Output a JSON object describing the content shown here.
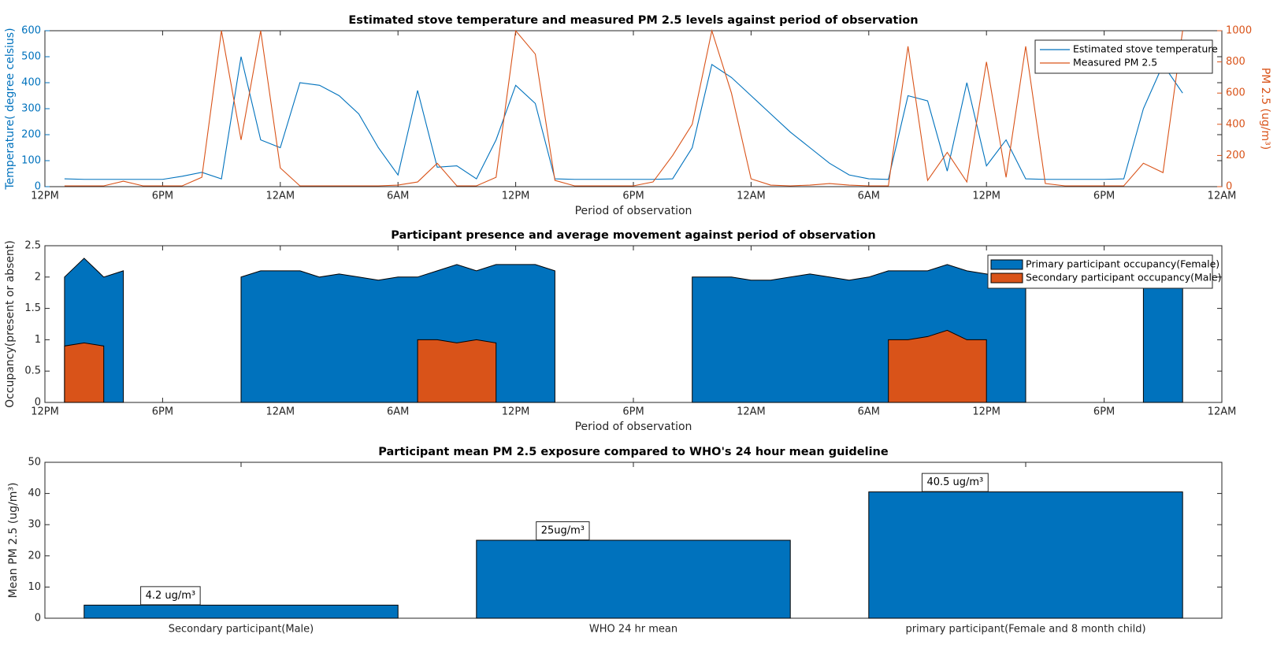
{
  "chart_data": [
    {
      "type": "line",
      "title": "Estimated stove temperature and measured PM 2.5 levels against period of observation",
      "xlabel": "Period of observation",
      "ylabel": "Temperature( degree celsius)",
      "y2label": "PM 2.5 (ug/m³)",
      "x": [
        0,
        1,
        2,
        3,
        4,
        5,
        6,
        7,
        8,
        9,
        10,
        11,
        12,
        13,
        14,
        15,
        16,
        17,
        18,
        19,
        20,
        21,
        22,
        23,
        24,
        25,
        26,
        27,
        28,
        29,
        30,
        31,
        32,
        33,
        34,
        35,
        36,
        37,
        38,
        39,
        40,
        41,
        42,
        43,
        44,
        45,
        46,
        47,
        48,
        49,
        50,
        51,
        52,
        53,
        54,
        55,
        56,
        57,
        58,
        59,
        60
      ],
      "xlim": [
        0,
        60
      ],
      "xticks": [
        {
          "value": 0,
          "label": "12PM"
        },
        {
          "value": 6,
          "label": "6PM"
        },
        {
          "value": 12,
          "label": "12AM"
        },
        {
          "value": 18,
          "label": "6AM"
        },
        {
          "value": 24,
          "label": "12PM"
        },
        {
          "value": 30,
          "label": "6PM"
        },
        {
          "value": 36,
          "label": "12AM"
        },
        {
          "value": 42,
          "label": "6AM"
        },
        {
          "value": 48,
          "label": "12PM"
        },
        {
          "value": 54,
          "label": "6PM"
        },
        {
          "value": 60,
          "label": "12AM"
        }
      ],
      "ylim": [
        0,
        600
      ],
      "yticks": [
        0,
        100,
        200,
        300,
        400,
        500,
        600
      ],
      "y2lim": [
        0,
        1000
      ],
      "y2ticks": [
        0,
        200,
        400,
        600,
        800,
        1000
      ],
      "legend": "upper right",
      "series": [
        {
          "name": "Estimated stove temperature",
          "color": "#0072bd",
          "axis": "y",
          "values": [
            null,
            30,
            28,
            28,
            28,
            28,
            28,
            40,
            55,
            30,
            500,
            180,
            150,
            400,
            390,
            350,
            280,
            150,
            45,
            370,
            75,
            80,
            30,
            180,
            390,
            320,
            30,
            28,
            28,
            28,
            28,
            28,
            30,
            150,
            470,
            420,
            350,
            280,
            210,
            150,
            90,
            45,
            30,
            28,
            350,
            330,
            60,
            400,
            80,
            180,
            30,
            28,
            28,
            28,
            28,
            30,
            300,
            470,
            360,
            null,
            null
          ]
        },
        {
          "name": "Measured PM 2.5",
          "color": "#d95319",
          "axis": "y2",
          "values": [
            null,
            5,
            5,
            5,
            35,
            5,
            5,
            5,
            60,
            1000,
            300,
            1000,
            120,
            5,
            5,
            5,
            5,
            5,
            10,
            30,
            150,
            5,
            5,
            60,
            1000,
            850,
            40,
            5,
            5,
            5,
            5,
            30,
            200,
            400,
            1000,
            600,
            50,
            10,
            5,
            10,
            20,
            10,
            5,
            5,
            900,
            40,
            220,
            30,
            800,
            60,
            900,
            20,
            5,
            5,
            5,
            5,
            150,
            90,
            1000,
            null,
            null
          ]
        }
      ]
    },
    {
      "type": "area",
      "title": "Participant presence and average movement against period of observation",
      "xlabel": "Period of observation",
      "ylabel": "Occupancy(present or absent)",
      "x": [
        0,
        1,
        2,
        3,
        4,
        5,
        6,
        7,
        8,
        9,
        10,
        11,
        12,
        13,
        14,
        15,
        16,
        17,
        18,
        19,
        20,
        21,
        22,
        23,
        24,
        25,
        26,
        27,
        28,
        29,
        30,
        31,
        32,
        33,
        34,
        35,
        36,
        37,
        38,
        39,
        40,
        41,
        42,
        43,
        44,
        45,
        46,
        47,
        48,
        49,
        50,
        51,
        52,
        53,
        54,
        55,
        56,
        57,
        58,
        59,
        60
      ],
      "xlim": [
        0,
        60
      ],
      "xticks": [
        {
          "value": 0,
          "label": "12PM"
        },
        {
          "value": 6,
          "label": "6PM"
        },
        {
          "value": 12,
          "label": "12AM"
        },
        {
          "value": 18,
          "label": "6AM"
        },
        {
          "value": 24,
          "label": "12PM"
        },
        {
          "value": 30,
          "label": "6PM"
        },
        {
          "value": 36,
          "label": "12AM"
        },
        {
          "value": 42,
          "label": "6AM"
        },
        {
          "value": 48,
          "label": "12PM"
        },
        {
          "value": 54,
          "label": "6PM"
        },
        {
          "value": 60,
          "label": "12AM"
        }
      ],
      "ylim": [
        0,
        2.5
      ],
      "yticks": [
        0,
        0.5,
        1,
        1.5,
        2,
        2.5
      ],
      "legend": "upper right",
      "series": [
        {
          "name": "Primary participant occupancy(Female)",
          "color": "#0072bd",
          "values": [
            null,
            2.0,
            2.3,
            2.0,
            2.1,
            null,
            null,
            null,
            null,
            null,
            2.0,
            2.1,
            2.1,
            2.1,
            2.0,
            2.05,
            2.0,
            1.95,
            2.0,
            2.0,
            2.1,
            2.2,
            2.1,
            2.2,
            2.2,
            2.2,
            2.1,
            null,
            null,
            null,
            null,
            null,
            null,
            2.0,
            2.0,
            2.0,
            1.95,
            1.95,
            2.0,
            2.05,
            2.0,
            1.95,
            2.0,
            2.1,
            2.1,
            2.1,
            2.2,
            2.1,
            2.05,
            2.0,
            2.0,
            null,
            null,
            null,
            null,
            null,
            2.0,
            2.0,
            2.0,
            null,
            null
          ]
        },
        {
          "name": "Secondary participant occupancy(Male)",
          "color": "#d95319",
          "values": [
            null,
            0.9,
            0.95,
            0.9,
            null,
            null,
            null,
            null,
            null,
            null,
            null,
            null,
            null,
            null,
            null,
            null,
            null,
            null,
            null,
            1.0,
            1.0,
            0.95,
            1.0,
            0.95,
            null,
            null,
            null,
            null,
            null,
            null,
            null,
            null,
            null,
            null,
            null,
            null,
            null,
            null,
            null,
            null,
            null,
            null,
            null,
            1.0,
            1.0,
            1.05,
            1.15,
            1.0,
            1.0,
            null,
            null,
            null,
            null,
            null,
            null,
            null,
            null,
            null,
            null,
            null,
            null
          ]
        }
      ]
    },
    {
      "type": "bar",
      "title": "Participant mean PM 2.5 exposure compared to WHO's 24 hour mean guideline",
      "ylabel": "Mean PM 2.5 (ug/m³)",
      "categories": [
        "Secondary participant(Male)",
        "WHO 24 hr mean",
        "primary participant(Female and 8 month child)"
      ],
      "values": [
        4.2,
        25,
        40.5
      ],
      "value_labels": [
        "4.2 ug/m³",
        "25ug/m³",
        "40.5 ug/m³"
      ],
      "color": "#0072bd",
      "ylim": [
        0,
        50
      ],
      "yticks": [
        0,
        10,
        20,
        30,
        40,
        50
      ]
    }
  ]
}
